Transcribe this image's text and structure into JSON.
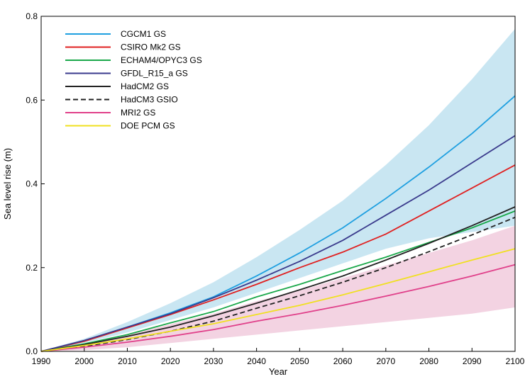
{
  "chart_data": {
    "type": "line",
    "xlabel": "Year",
    "ylabel": "Sea level rise (m)",
    "xlim": [
      1990,
      2100
    ],
    "ylim": [
      0,
      0.8
    ],
    "x_ticks": [
      1990,
      2000,
      2010,
      2020,
      2030,
      2040,
      2050,
      2060,
      2070,
      2080,
      2090,
      2100
    ],
    "y_ticks": [
      "0.0",
      "0.2",
      "0.4",
      "0.6",
      "0.8"
    ],
    "y_tick_values": [
      0,
      0.2,
      0.4,
      0.6,
      0.8
    ],
    "grid": false,
    "legend_placement": "top-left",
    "x": [
      1990,
      2000,
      2010,
      2020,
      2030,
      2040,
      2050,
      2060,
      2070,
      2080,
      2090,
      2100
    ],
    "bands": [
      {
        "color": "#c9e6f2",
        "lower": [
          0,
          0.02,
          0.045,
          0.075,
          0.105,
          0.14,
          0.175,
          0.21,
          0.245,
          0.27,
          0.285,
          0.3
        ],
        "upper": [
          0,
          0.03,
          0.07,
          0.115,
          0.165,
          0.225,
          0.29,
          0.36,
          0.445,
          0.54,
          0.65,
          0.77
        ]
      },
      {
        "color": "#f3d3e2",
        "lower": [
          0,
          0.003,
          0.01,
          0.02,
          0.03,
          0.04,
          0.05,
          0.06,
          0.07,
          0.08,
          0.09,
          0.105
        ],
        "upper": [
          0,
          0.018,
          0.04,
          0.065,
          0.09,
          0.12,
          0.145,
          0.175,
          0.205,
          0.235,
          0.265,
          0.3
        ]
      }
    ],
    "series": [
      {
        "name": "CGCM1 GS",
        "color": "#1e9fe0",
        "dash": false,
        "values": [
          0,
          0.025,
          0.058,
          0.092,
          0.13,
          0.18,
          0.235,
          0.295,
          0.365,
          0.44,
          0.52,
          0.61
        ]
      },
      {
        "name": "CSIRO Mk2 GS",
        "color": "#e02020",
        "dash": false,
        "values": [
          0,
          0.024,
          0.056,
          0.088,
          0.123,
          0.16,
          0.2,
          0.237,
          0.28,
          0.335,
          0.39,
          0.445
        ]
      },
      {
        "name": "ECHAM4/OPYC3 GS",
        "color": "#1aa84a",
        "dash": false,
        "values": [
          0,
          0.018,
          0.04,
          0.068,
          0.095,
          0.13,
          0.16,
          0.193,
          0.225,
          0.26,
          0.295,
          0.335
        ]
      },
      {
        "name": "GFDL_R15_a GS",
        "color": "#3a3a8c",
        "dash": false,
        "values": [
          0,
          0.026,
          0.058,
          0.09,
          0.128,
          0.17,
          0.215,
          0.265,
          0.325,
          0.385,
          0.45,
          0.515
        ]
      },
      {
        "name": "HadCM2 GS",
        "color": "#222222",
        "dash": false,
        "values": [
          0,
          0.016,
          0.036,
          0.058,
          0.085,
          0.115,
          0.147,
          0.18,
          0.218,
          0.258,
          0.3,
          0.345
        ]
      },
      {
        "name": "HadCM3 GSIO",
        "color": "#222222",
        "dash": true,
        "values": [
          0,
          0.012,
          0.028,
          0.048,
          0.072,
          0.103,
          0.133,
          0.165,
          0.2,
          0.238,
          0.278,
          0.32
        ]
      },
      {
        "name": "MRI2 GS",
        "color": "#e0408a",
        "dash": false,
        "values": [
          0,
          0.01,
          0.022,
          0.036,
          0.052,
          0.072,
          0.09,
          0.11,
          0.132,
          0.155,
          0.18,
          0.207
        ]
      },
      {
        "name": "DOE PCM GS",
        "color": "#f0e020",
        "dash": false,
        "values": [
          0,
          0.014,
          0.03,
          0.048,
          0.066,
          0.088,
          0.11,
          0.135,
          0.162,
          0.19,
          0.218,
          0.245
        ]
      }
    ]
  }
}
